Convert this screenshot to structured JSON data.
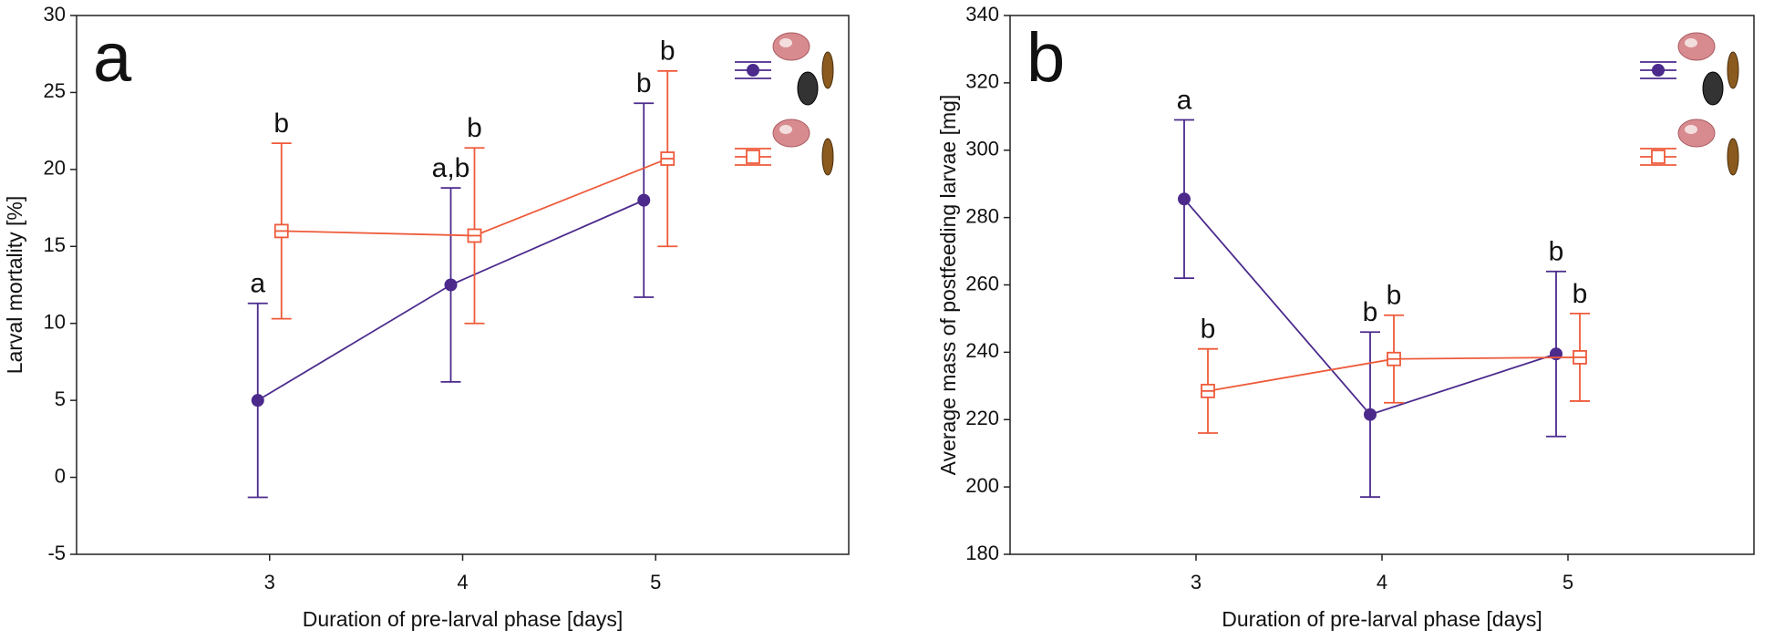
{
  "chart_data": [
    {
      "type": "line",
      "panel_label": "a",
      "xlabel": "Duration of pre-larval phase [days]",
      "ylabel": "Larval mortality [%]",
      "x": [
        3,
        4,
        5
      ],
      "xlim": [
        2,
        6
      ],
      "xticks": [
        3,
        4,
        5
      ],
      "ylim": [
        -5,
        30
      ],
      "yticks": [
        -5,
        0,
        5,
        10,
        15,
        20,
        25,
        30
      ],
      "series": [
        {
          "color": "#4b2a8c",
          "marker": "circle",
          "values": [
            5,
            12.5,
            18
          ],
          "errors": [
            6.3,
            6.3,
            6.3
          ],
          "letters": [
            "a",
            "a,b",
            "b"
          ]
        },
        {
          "color": "#ee5a3a",
          "marker": "square",
          "values": [
            16,
            15.7,
            20.7
          ],
          "errors": [
            5.7,
            5.7,
            5.7
          ],
          "letters": [
            "b",
            "b",
            "b"
          ]
        }
      ]
    },
    {
      "type": "line",
      "panel_label": "b",
      "xlabel": "Duration of pre-larval phase [days]",
      "ylabel": "Average mass of postfeeding larvae [mg]",
      "x": [
        3,
        4,
        5
      ],
      "xlim": [
        2,
        6
      ],
      "xticks": [
        3,
        4,
        5
      ],
      "ylim": [
        180,
        340
      ],
      "yticks": [
        180,
        200,
        220,
        240,
        260,
        280,
        300,
        320,
        340
      ],
      "series": [
        {
          "color": "#4b2a8c",
          "marker": "circle",
          "values": [
            285.5,
            221.5,
            239.5
          ],
          "errors": [
            23.5,
            24.5,
            24.5
          ],
          "letters": [
            "a",
            "b",
            "b"
          ]
        },
        {
          "color": "#ee5a3a",
          "marker": "square",
          "values": [
            228.5,
            238,
            238.5
          ],
          "errors": [
            12.5,
            13,
            13
          ],
          "letters": [
            "b",
            "b",
            "b"
          ]
        }
      ]
    }
  ]
}
